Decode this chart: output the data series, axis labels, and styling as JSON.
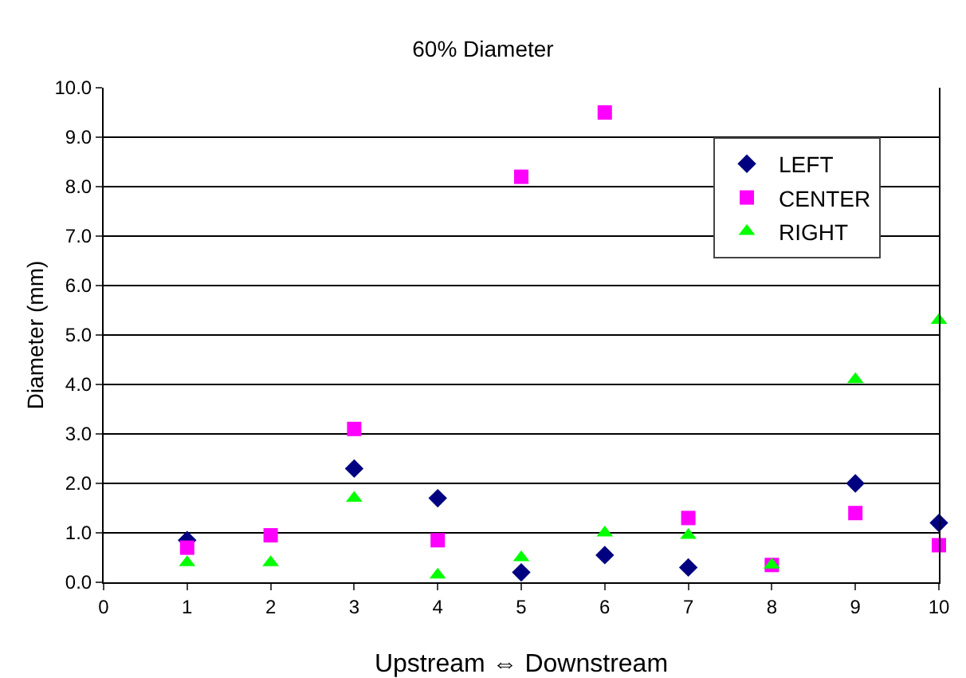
{
  "chart_data": {
    "type": "scatter",
    "title": "60% Diameter",
    "xlabel": "Upstream ⇔ Downstream",
    "ylabel": "Diameter (mm)",
    "x": [
      1,
      2,
      3,
      4,
      5,
      6,
      7,
      8,
      9,
      10
    ],
    "series": [
      {
        "name": "LEFT",
        "color": "#000080",
        "marker": "diamond",
        "values": [
          0.85,
          null,
          2.3,
          1.7,
          0.2,
          0.55,
          0.3,
          null,
          2.0,
          1.2
        ]
      },
      {
        "name": "CENTER",
        "color": "#ff00ff",
        "marker": "square",
        "values": [
          0.7,
          0.95,
          3.1,
          0.85,
          8.2,
          9.5,
          1.3,
          0.35,
          1.4,
          0.75
        ]
      },
      {
        "name": "RIGHT",
        "color": "#00ff00",
        "marker": "triangle",
        "values": [
          0.4,
          0.4,
          1.7,
          0.15,
          0.5,
          1.0,
          0.95,
          0.35,
          4.1,
          5.3
        ]
      }
    ],
    "xlim": [
      0,
      10
    ],
    "xticks": [
      0,
      1,
      2,
      3,
      4,
      5,
      6,
      7,
      8,
      9,
      10
    ],
    "ylim": [
      0,
      10
    ],
    "yticks": [
      {
        "value": 0,
        "label": "0.0"
      },
      {
        "value": 1,
        "label": "1.0"
      },
      {
        "value": 2,
        "label": "2.0"
      },
      {
        "value": 3,
        "label": "3.0"
      },
      {
        "value": 4,
        "label": "4.0"
      },
      {
        "value": 5,
        "label": "5.0"
      },
      {
        "value": 6,
        "label": "6.0"
      },
      {
        "value": 7,
        "label": "7.0"
      },
      {
        "value": 8,
        "label": "8.0"
      },
      {
        "value": 9,
        "label": "9.0"
      },
      {
        "value": 10,
        "label": "10.0"
      }
    ],
    "grid": "y",
    "legend": "top right"
  }
}
